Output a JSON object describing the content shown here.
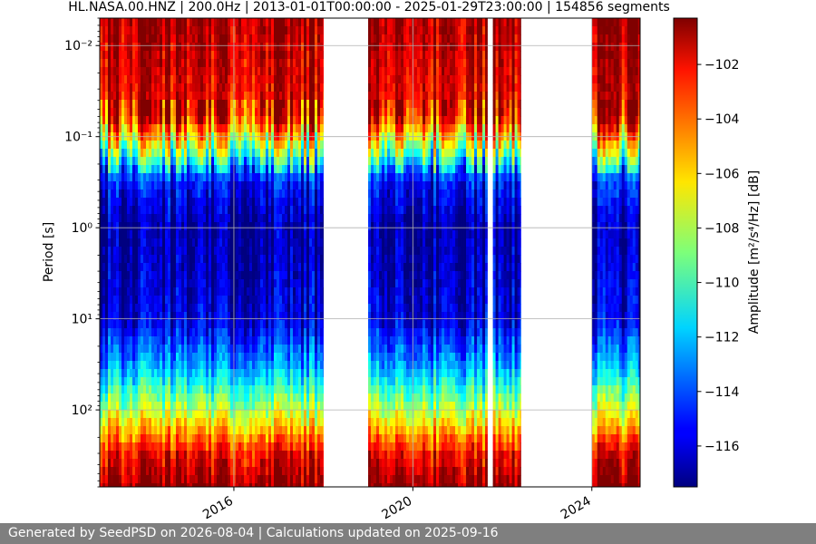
{
  "chart_data": {
    "type": "heatmap",
    "title": "HL.NASA.00.HNZ | 200.0Hz | 2013-01-01T00:00:00 - 2025-01-29T23:00:00 | 154856 segments",
    "xlabel": "",
    "ylabel": "Period [s]",
    "x_ticks": [
      "2016",
      "2020",
      "2024"
    ],
    "x_range": [
      "2013-01-01",
      "2025-01-29"
    ],
    "y_scale": "log",
    "y_range": [
      0.005,
      700
    ],
    "y_ticks": [
      {
        "value": 0.01,
        "label": "10⁻²"
      },
      {
        "value": 0.1,
        "label": "10⁻¹"
      },
      {
        "value": 1,
        "label": "10⁰"
      },
      {
        "value": 10,
        "label": "10¹"
      },
      {
        "value": 100,
        "label": "10²"
      }
    ],
    "grid": true,
    "colorbar": {
      "label": "Amplitude [m²/s⁴/Hz] [dB]",
      "colormap": "jet",
      "range": [
        -117.5,
        -100.3
      ],
      "ticks": [
        -102,
        -104,
        -106,
        -108,
        -110,
        -112,
        -114,
        -116
      ]
    },
    "data_segments": [
      {
        "start": "2013-01-01",
        "end": "2017-12-31"
      },
      {
        "start": "2019-01-01",
        "end": "2021-08-31"
      },
      {
        "start": "2021-10-15",
        "end": "2022-05-31"
      },
      {
        "start": "2024-01-01",
        "end": "2025-01-29"
      }
    ],
    "period_profile": [
      {
        "period": 0.005,
        "db": -101
      },
      {
        "period": 0.06,
        "db": -102.5
      },
      {
        "period": 0.13,
        "db": -108
      },
      {
        "period": 0.3,
        "db": -115
      },
      {
        "period": 1,
        "db": -117
      },
      {
        "period": 10,
        "db": -116
      },
      {
        "period": 30,
        "db": -113
      },
      {
        "period": 100,
        "db": -108
      },
      {
        "period": 300,
        "db": -102.5
      },
      {
        "period": 700,
        "db": -100.5
      }
    ]
  },
  "footer": {
    "text": "Generated by SeedPSD on 2026-08-04 | Calculations updated on 2025-09-16"
  }
}
